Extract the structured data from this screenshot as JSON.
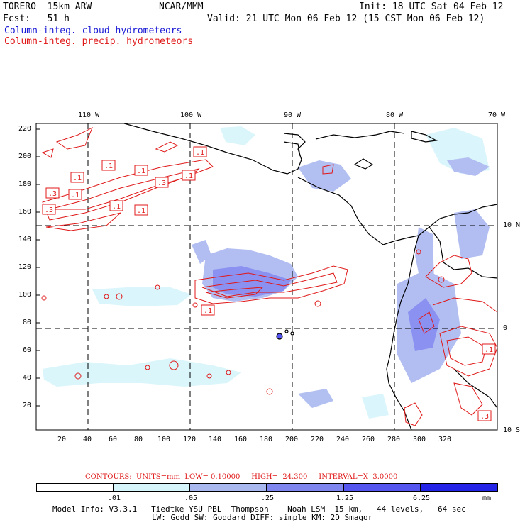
{
  "header": {
    "model": "TORERO  15km ARW",
    "org": "NCAR/MMM",
    "init": "Init: 18 UTC Sat 04 Feb 12",
    "fcst": "Fcst:   51 h",
    "valid": "Valid: 21 UTC Mon 06 Feb 12 (15 CST Mon 06 Feb 12)"
  },
  "legend_titles": {
    "cloud": "Column-integ. cloud hydrometeors",
    "precip": "Column-integ. precip. hydrometeors"
  },
  "map": {
    "top_lon_labels": [
      "110 W",
      "100 W",
      "90 W",
      "80 W",
      "70 W"
    ],
    "right_lat_labels": [
      "10 N",
      "0",
      "10 S"
    ],
    "left_y_ticks": [
      "220",
      "200",
      "180",
      "160",
      "140",
      "120",
      "100",
      "80",
      "60",
      "40",
      "20"
    ],
    "bottom_x_ticks": [
      "20",
      "40",
      "60",
      "80",
      "100",
      "120",
      "140",
      "160",
      "180",
      "200",
      "220",
      "240",
      "260",
      "280",
      "300",
      "320"
    ],
    "contour_boxes": [
      ".1",
      ".1",
      ".1",
      ".1",
      ".1",
      ".3",
      ".3",
      ".1",
      ".1",
      ".3",
      ".1",
      ".1",
      ".1",
      ".3"
    ]
  },
  "contour_info": {
    "label": "CONTOURS:  UNITS=mm  LOW= 0.10000     HIGH=  24.300     INTERVAL=X  3.0000"
  },
  "colorbar": {
    "ticks": [
      ".01",
      ".05",
      ".25",
      "1.25",
      "6.25"
    ],
    "unit": "mm",
    "colors": [
      "#ffffff",
      "#d6f5fb",
      "#aab8f0",
      "#7f86f0",
      "#5556f0",
      "#2424e6"
    ]
  },
  "footer": {
    "line1": "Model Info: V3.3.1   Tiedtke YSU PBL  Thompson    Noah LSM  15 km,   44 levels,   64 sec",
    "line2": "LW: Godd SW: Goddard DIFF: simple KM: 2D Smagor"
  }
}
